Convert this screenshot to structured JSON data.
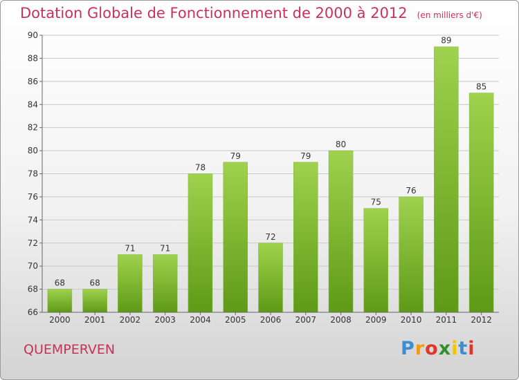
{
  "title": "Dotation Globale de Fonctionnement de 2000 à 2012",
  "unit_label": "(en milliers d'€)",
  "commune": "QUEMPERVEN",
  "logo": {
    "letters": [
      "P",
      "r",
      "o",
      "x",
      "i",
      "t",
      "i"
    ],
    "colors": [
      "#3a8fd2",
      "#f19a1a",
      "#e0352b",
      "#2f8f2f",
      "#f2c500",
      "#3a8fd2",
      "#e0352b"
    ]
  },
  "colors": {
    "title": "#c8315a",
    "bar_light": "#9fd24e",
    "bar_dark": "#5e9a16",
    "grid": "#c8c8c8"
  },
  "chart_data": {
    "type": "bar",
    "categories": [
      "2000",
      "2001",
      "2002",
      "2003",
      "2004",
      "2005",
      "2006",
      "2007",
      "2008",
      "2009",
      "2010",
      "2011",
      "2012"
    ],
    "values": [
      68,
      68,
      71,
      71,
      78,
      79,
      72,
      79,
      80,
      75,
      76,
      89,
      85
    ],
    "ylim": [
      66,
      90
    ],
    "yticks": [
      66,
      68,
      70,
      72,
      74,
      76,
      78,
      80,
      82,
      84,
      86,
      88,
      90
    ],
    "grid": true
  }
}
